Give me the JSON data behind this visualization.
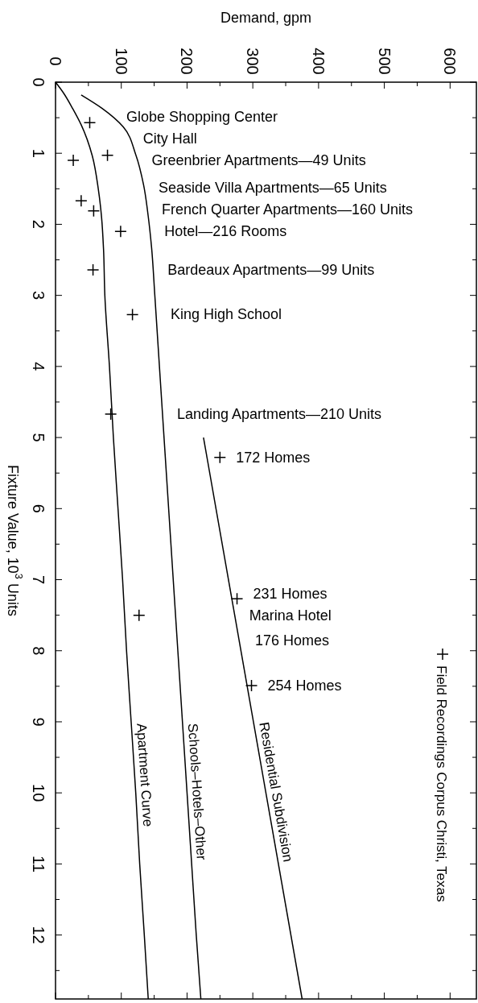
{
  "chart_data": {
    "type": "line",
    "xlabel": "Demand, gpm",
    "ylabel": "Fixture Value, 10$^{3}$ Units",
    "xlim": [
      0,
      640
    ],
    "ylim": [
      12.9,
      0
    ],
    "xticks": [
      0,
      {
        "value": 50,
        "label": null
      },
      100,
      {
        "value": 150,
        "label": null
      },
      200,
      {
        "value": 250,
        "label": null
      },
      300,
      {
        "value": 350,
        "label": null
      },
      400,
      {
        "value": 450,
        "label": null
      },
      500,
      {
        "value": 550,
        "label": null
      },
      600
    ],
    "yticks": [
      0,
      {
        "value": 0.5,
        "label": null
      },
      1,
      {
        "value": 1.5,
        "label": null
      },
      2,
      {
        "value": 2.5,
        "label": null
      },
      3,
      {
        "value": 3.5,
        "label": null
      },
      4,
      {
        "value": 4.5,
        "label": null
      },
      5,
      {
        "value": 5.5,
        "label": null
      },
      6,
      {
        "value": 6.5,
        "label": null
      },
      7,
      {
        "value": 7.5,
        "label": null
      },
      8,
      {
        "value": 8.5,
        "label": null
      },
      9,
      {
        "value": 9.5,
        "label": null
      },
      10,
      {
        "value": 10.5,
        "label": null
      },
      11,
      {
        "value": 11.5,
        "label": null
      },
      12,
      {
        "value": 12.5,
        "label": null
      }
    ],
    "legend": "bottom right",
    "series": [
      {
        "name": "Apartment Curve",
        "type": "line",
        "color": "#000000",
        "x": [
          0,
          12,
          26,
          39,
          56,
          65,
          70,
          73,
          75,
          82,
          88,
          95,
          102,
          108,
          115,
          122,
          128,
          135,
          141
        ],
        "values": [
          0,
          0.15,
          0.37,
          0.6,
          1.04,
          1.5,
          1.9,
          2.35,
          3,
          4,
          5,
          6,
          7,
          8,
          9,
          10,
          11,
          12,
          12.9
        ]
      },
      {
        "name": "Schools–Hotels–Other",
        "type": "line",
        "color": "#000000",
        "x": [
          39,
          71,
          103,
          122,
          134,
          141,
          146,
          151,
          158,
          165,
          172,
          179,
          186,
          193,
          200,
          207,
          214,
          221
        ],
        "values": [
          0.18,
          0.37,
          0.63,
          1.02,
          1.45,
          1.89,
          2.32,
          3,
          4,
          5,
          6,
          7,
          8,
          9,
          10,
          11,
          12,
          12.9
        ]
      },
      {
        "name": "Residential Subdivision",
        "type": "line",
        "color": "#000000",
        "x": [
          225,
          375
        ],
        "values": [
          5,
          12.9
        ]
      },
      {
        "name": "Field Recordings Corpus Christi, Texas",
        "type": "scatter",
        "marker": "cross",
        "color": "#000000",
        "x": [
          52,
          79,
          27,
          39,
          58,
          99,
          57,
          117,
          84,
          250,
          276,
          127,
          298
        ],
        "values": [
          0.57,
          1.03,
          1.1,
          1.67,
          1.81,
          2.1,
          2.64,
          3.27,
          4.67,
          5.28,
          7.27,
          7.5,
          8.49
        ]
      }
    ],
    "annotations": [
      {
        "text": "Globe Shopping Center",
        "x": 52,
        "y": 0.57
      },
      {
        "text": "City Hall",
        "x": 79,
        "y": 1.03
      },
      "Greenbrier Apartments—49 Units",
      "Seaside Villa Apartments—65 Units",
      "French Quarter Apartments—160 Units",
      "Hotel—216 Rooms",
      "Bardeaux Apartments—99 Units",
      {
        "text": "King High School",
        "x": 117,
        "y": 3.27
      },
      "Landing Apartments—210 Units",
      {
        "text": "172 Homes",
        "x": 250,
        "y": 5.28
      },
      {
        "text": "231 Homes",
        "x": 276,
        "y": 7.27
      },
      "Marina Hotel",
      {
        "text": "176 Homes",
        "x": 279,
        "y": 7.85
      },
      {
        "text": "254 Homes",
        "x": 298,
        "y": 8.49
      }
    ]
  }
}
